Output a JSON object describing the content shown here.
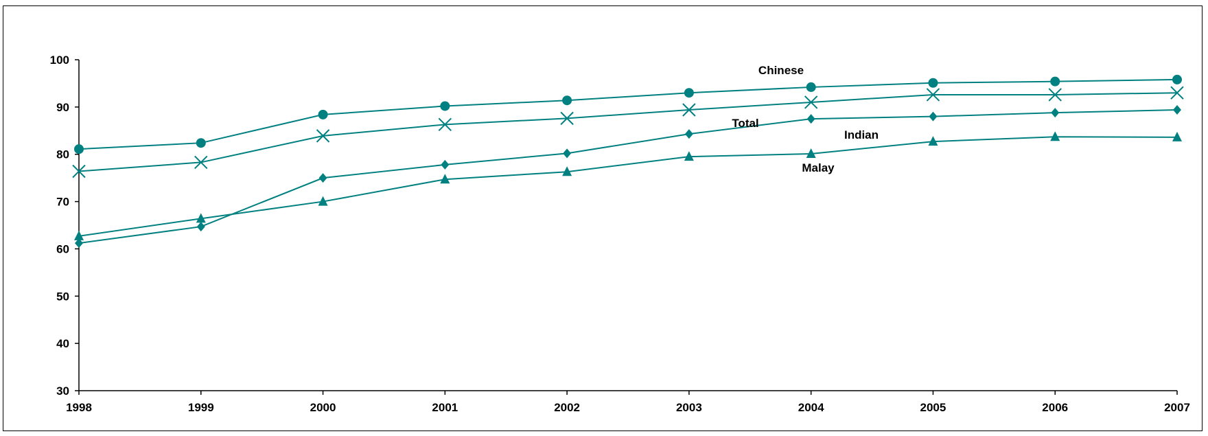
{
  "chart_data": {
    "type": "line",
    "title": "",
    "xlabel": "",
    "ylabel": "",
    "x": [
      1998,
      1999,
      2000,
      2001,
      2002,
      2003,
      2004,
      2005,
      2006,
      2007
    ],
    "x_tick_labels": [
      "1998",
      "1999",
      "2000",
      "2001",
      "2002",
      "2003",
      "2004",
      "2005",
      "2006",
      "2007"
    ],
    "ylim": [
      30,
      100
    ],
    "y_ticks": [
      30,
      40,
      50,
      60,
      70,
      80,
      90,
      100
    ],
    "y_tick_labels": [
      "30",
      "40",
      "50",
      "60",
      "70",
      "80",
      "90",
      "100"
    ],
    "grid": false,
    "legend": "none (series labelled inline)",
    "line_color": "#008080",
    "series": [
      {
        "name": "Chinese",
        "marker": "circle",
        "values": [
          81.1,
          82.4,
          88.4,
          90.2,
          91.4,
          93.0,
          94.2,
          95.1,
          95.4,
          95.8
        ]
      },
      {
        "name": "Total",
        "marker": "x",
        "values": [
          76.4,
          78.3,
          83.9,
          86.3,
          87.6,
          89.4,
          91.0,
          92.6,
          92.6,
          93.0
        ]
      },
      {
        "name": "Indian",
        "marker": "diamond",
        "values": [
          61.2,
          64.7,
          75.0,
          77.8,
          80.2,
          84.3,
          87.5,
          88.0,
          88.8,
          89.4
        ]
      },
      {
        "name": "Malay",
        "marker": "triangle",
        "values": [
          62.7,
          66.4,
          70.0,
          74.7,
          76.3,
          79.5,
          80.1,
          82.7,
          83.7,
          83.6
        ]
      }
    ]
  }
}
